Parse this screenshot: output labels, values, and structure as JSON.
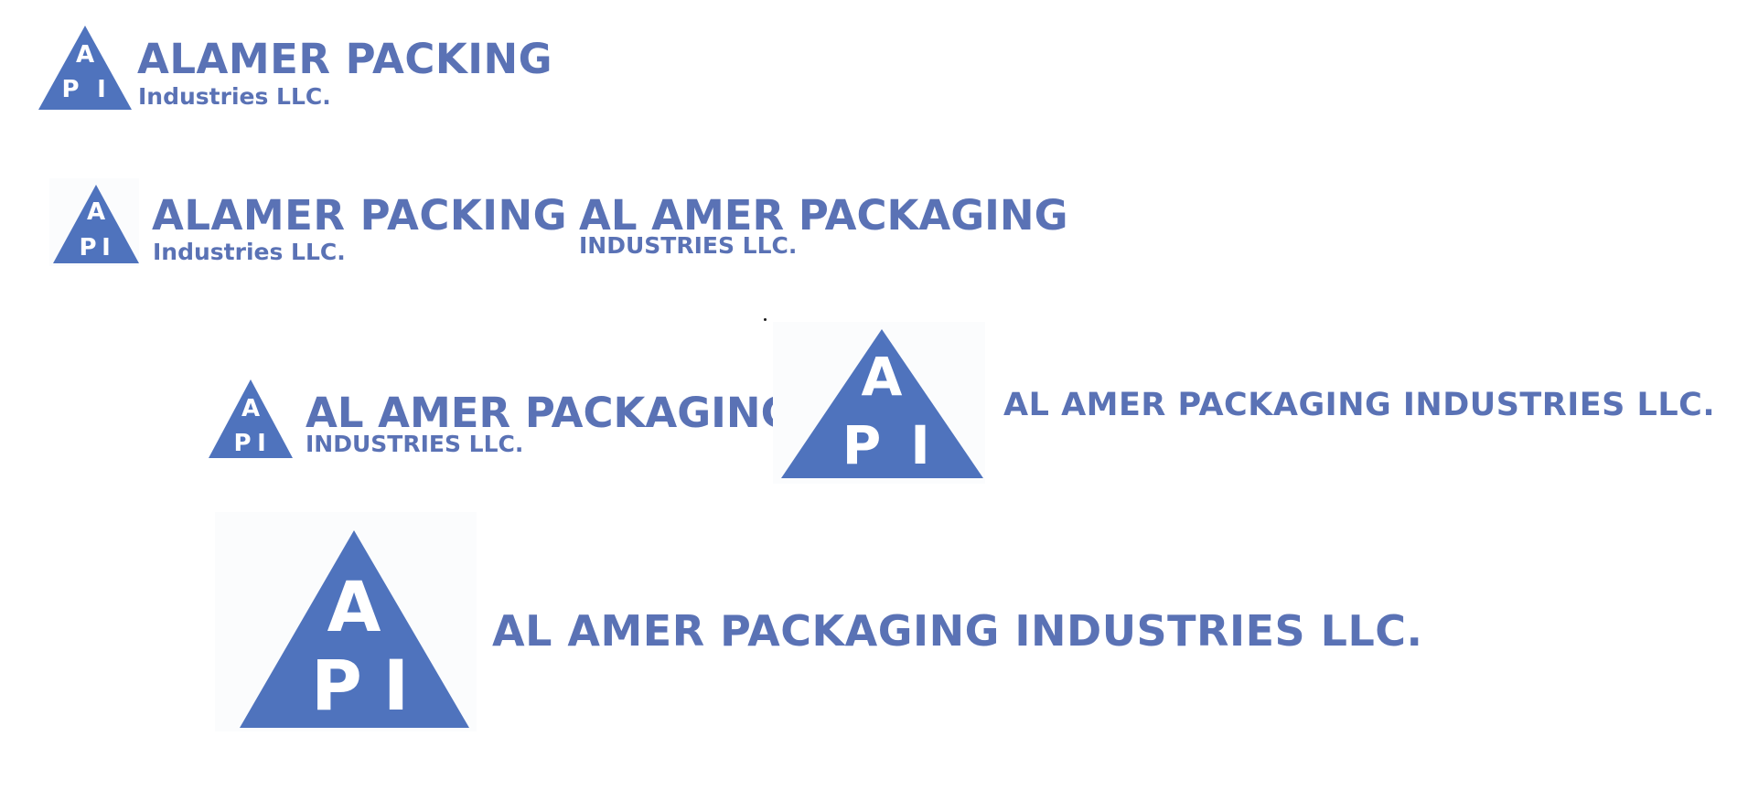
{
  "colors": {
    "brand": "#5a72b5",
    "brand_triangle": "#4f73bd",
    "background": "#ffffff"
  },
  "logos": [
    {
      "variant": "stacked-title-case",
      "triangle_letters": [
        "A",
        "P",
        "I"
      ],
      "name": "ALAMER PACKING",
      "sub": "Industries LLC."
    },
    {
      "variant": "stacked-title-case",
      "triangle_letters": [
        "A",
        "P",
        "I"
      ],
      "name": "ALAMER PACKING",
      "sub": "Industries LLC."
    },
    {
      "variant": "wordmark-only",
      "name": "AL AMER PACKAGING",
      "sub": "INDUSTRIES LLC."
    },
    {
      "variant": "stacked-uppercase",
      "triangle_letters": [
        "A",
        "P",
        "I"
      ],
      "name": "AL AMER PACKAGING",
      "sub": "INDUSTRIES LLC."
    },
    {
      "variant": "single-line",
      "triangle_letters": [
        "A",
        "P",
        "I"
      ],
      "name": "AL AMER PACKAGING INDUSTRIES LLC."
    },
    {
      "variant": "single-line-large",
      "triangle_letters": [
        "A",
        "P",
        "I"
      ],
      "name": "AL AMER PACKAGING INDUSTRIES LLC."
    }
  ]
}
